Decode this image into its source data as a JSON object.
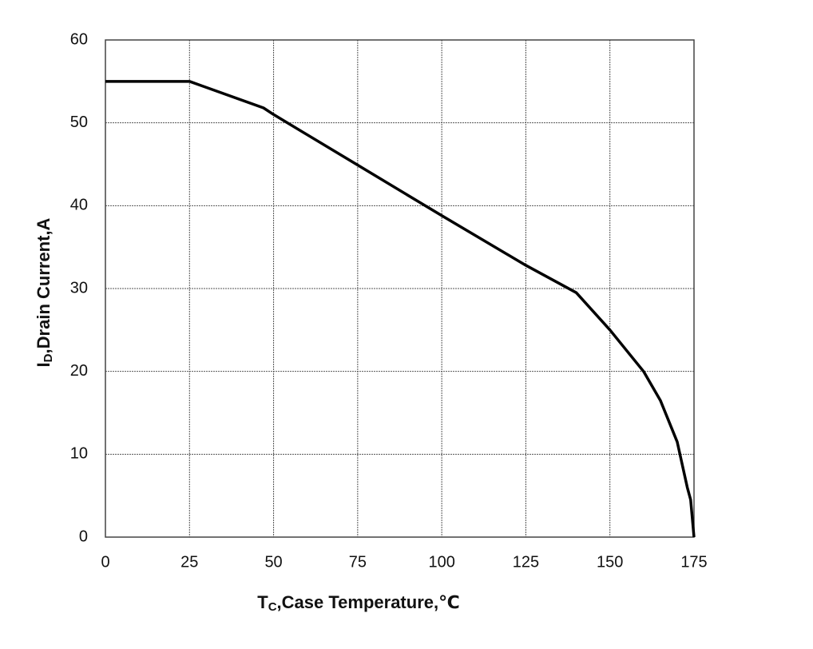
{
  "chart_data": {
    "type": "line",
    "x_label": {
      "main": "T",
      "sub": "C",
      "rest": ",Case Temperature,℃"
    },
    "y_label": {
      "main": "I",
      "sub": "D",
      "rest": ",Drain Current,A"
    },
    "x": [
      0,
      25,
      47,
      50,
      75,
      100,
      125,
      140,
      150,
      160,
      165,
      170,
      173,
      174,
      175
    ],
    "series": [
      {
        "color": "#000000",
        "values": [
          55,
          55,
          51.8,
          51,
          44.9,
          38.8,
          32.8,
          29.5,
          25,
          20,
          16.5,
          11.5,
          6,
          4.5,
          0
        ]
      }
    ],
    "xlim": [
      0,
      175
    ],
    "xticks": [
      0,
      25,
      50,
      75,
      100,
      125,
      150,
      175
    ],
    "ylim": [
      0,
      60
    ],
    "yticks": [
      0,
      10,
      20,
      30,
      40,
      50,
      60
    ],
    "grid": true
  }
}
